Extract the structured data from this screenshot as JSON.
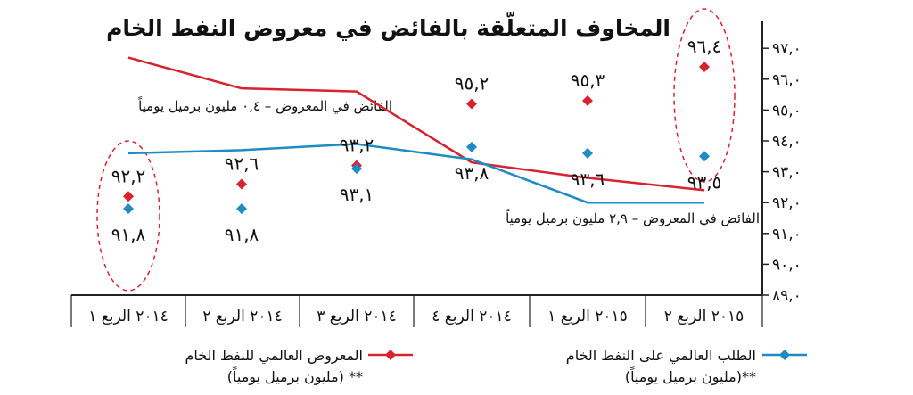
{
  "chart_data": {
    "type": "line",
    "title": "المخاوف المتعلّقة بالفائض في معروض النفط الخام",
    "ylim": [
      89,
      97
    ],
    "yticks": [
      {
        "v": 97,
        "label": "٩٧,٠"
      },
      {
        "v": 96,
        "label": "٩٦,٠"
      },
      {
        "v": 95,
        "label": "٩٥,٠"
      },
      {
        "v": 94,
        "label": "٩٤,٠"
      },
      {
        "v": 93,
        "label": "٩٣,٠"
      },
      {
        "v": 92,
        "label": "٩٢,٠"
      },
      {
        "v": 91,
        "label": "٩١,٠"
      },
      {
        "v": 90,
        "label": "٩٠,٠"
      },
      {
        "v": 89,
        "label": "٨٩,٠"
      }
    ],
    "categories": [
      "٢٠١٤ الربع ١",
      "٢٠١٤ الربع ٢",
      "٢٠١٤ الربع ٣",
      "٢٠١٤ الربع ٤",
      "٢٠١٥ الربع ١",
      "٢٠١٥ الربع ٢"
    ],
    "series": [
      {
        "name": "المعروض العالمي للنفط الخام",
        "color": "#d7232f",
        "marker": "diamond",
        "values": [
          92.2,
          92.6,
          93.2,
          95.2,
          95.3,
          96.4
        ],
        "labels": [
          "٩٢,٢",
          "٩٢,٦",
          "٩٣,٢",
          "٩٥,٢",
          "٩٥,٣",
          "٩٦,٤"
        ]
      },
      {
        "name": "الطلب العالمي على النفط الخام",
        "color": "#1f8bc4",
        "marker": "diamond",
        "values": [
          91.8,
          91.8,
          93.1,
          93.8,
          93.6,
          93.5
        ],
        "labels": [
          "٩١,٨",
          "٩١,٨",
          "٩٣,١",
          "٩٣,٨",
          "٩٣,٦",
          "٩٣,٥"
        ]
      }
    ],
    "lines": [
      {
        "color": "#d7232f",
        "values": [
          96.7,
          95.7,
          95.6,
          93.3,
          92.8,
          92.4
        ]
      },
      {
        "color": "#1f8bc4",
        "values": [
          93.6,
          93.7,
          93.9,
          93.4,
          92.0,
          92.0
        ]
      }
    ],
    "annotations": [
      "الفائض في المعروض – ٠,٤ مليون برميل يومياً",
      "الفائض في المعروض – ٢,٩ مليون برميل يومياً"
    ],
    "legend": [
      {
        "label": "المعروض العالمي للنفط الخام",
        "unit": "(مليون برميل يومياً) **",
        "color": "#d7232f"
      },
      {
        "label": "الطلب العالمي على النفط الخام",
        "unit": "(مليون برميل يومياً)**",
        "color": "#1f8bc4"
      }
    ]
  }
}
